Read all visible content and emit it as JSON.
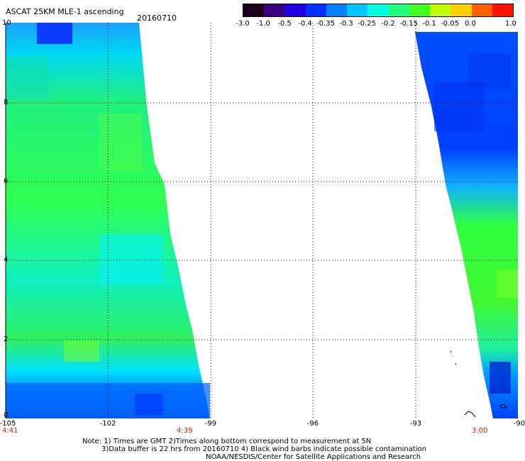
{
  "header": {
    "title": "ASCAT 25KM MLE-1 ascending",
    "date": "20160710"
  },
  "colorbar": {
    "labels": [
      "-3.0",
      "-1.0",
      "-0.5",
      "-0.4",
      "-0.35",
      "-0.3",
      "-0.25",
      "-0.2",
      "-0.15",
      "-0.1",
      "-0.05",
      "0.0",
      "1.0"
    ],
    "colors": [
      "#1a001a",
      "#2a0050",
      "#3c0096",
      "#0000ff",
      "#0050ff",
      "#00a0ff",
      "#00e6ff",
      "#00ffa0",
      "#20ff20",
      "#a0ff00",
      "#ffff00",
      "#ff8000",
      "#ff0000"
    ]
  },
  "axes": {
    "y_ticks": [
      "10",
      "8",
      "6",
      "4",
      "2",
      "0"
    ],
    "x_ticks": [
      "-105",
      "-102",
      "-99",
      "-96",
      "-93",
      "-90"
    ],
    "lat_range": [
      0,
      10
    ],
    "lon_range": [
      -105,
      -90
    ]
  },
  "times": {
    "left": "4:41",
    "middle": "4:39",
    "right": "3:00"
  },
  "notes": {
    "line1": "Note: 1) Times are GMT 2)Times along bottom correspond to measurement at 5N",
    "line2": "3)Data buffer is 22 hrs from 20160710 4) Black wind barbs indicate possible contamination",
    "line3": "NOAA/NESDIS/Center for Satellite Applications and Research"
  }
}
